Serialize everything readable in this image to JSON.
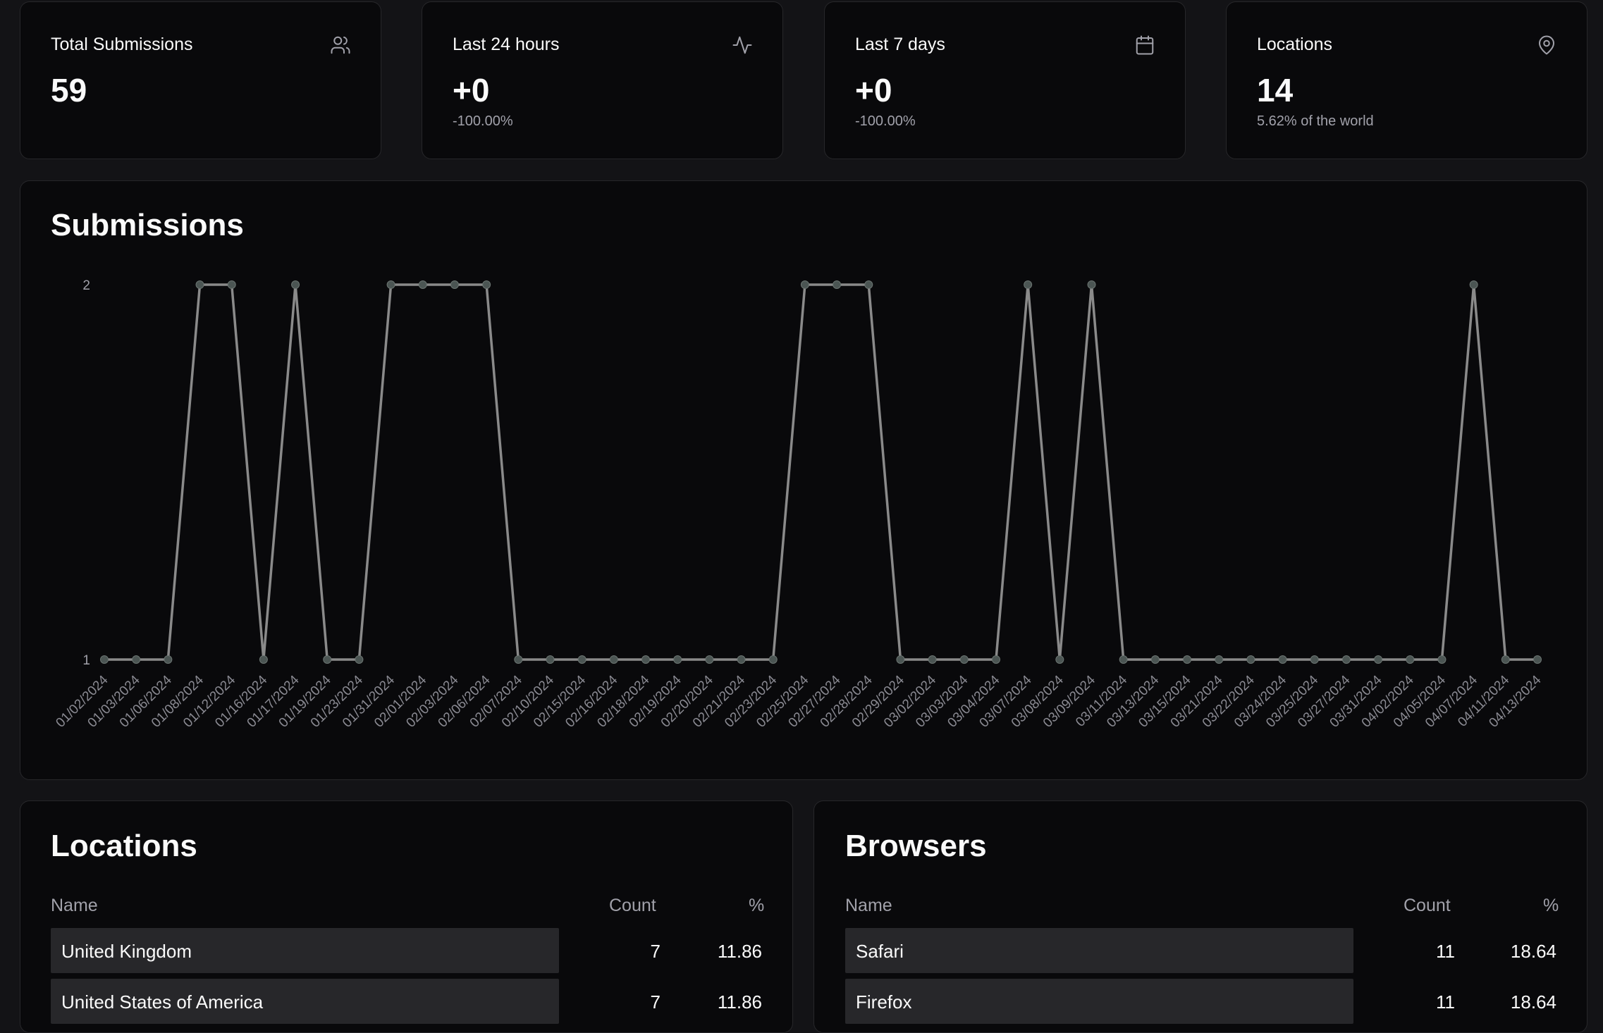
{
  "stats": [
    {
      "title": "Total Submissions",
      "value": "59",
      "sub": "",
      "icon": "users-icon"
    },
    {
      "title": "Last 24 hours",
      "value": "+0",
      "sub": "-100.00%",
      "icon": "activity-icon"
    },
    {
      "title": "Last 7 days",
      "value": "+0",
      "sub": "-100.00%",
      "icon": "calendar-icon"
    },
    {
      "title": "Locations",
      "value": "14",
      "sub": "5.62% of the world",
      "icon": "map-pin-icon"
    }
  ],
  "chart_section": {
    "title": "Submissions"
  },
  "chart_data": {
    "type": "line",
    "title": "Submissions",
    "ylim": [
      1,
      2
    ],
    "yticks": [
      "1",
      "2"
    ],
    "grid": false,
    "line_color": "#8a8a8a",
    "point_color": "#4b5553",
    "x": [
      "01/02/2024",
      "01/03/2024",
      "01/06/2024",
      "01/08/2024",
      "01/12/2024",
      "01/16/2024",
      "01/17/2024",
      "01/19/2024",
      "01/23/2024",
      "01/31/2024",
      "02/01/2024",
      "02/03/2024",
      "02/06/2024",
      "02/07/2024",
      "02/10/2024",
      "02/15/2024",
      "02/16/2024",
      "02/18/2024",
      "02/19/2024",
      "02/20/2024",
      "02/21/2024",
      "02/23/2024",
      "02/25/2024",
      "02/27/2024",
      "02/28/2024",
      "02/29/2024",
      "03/02/2024",
      "03/03/2024",
      "03/04/2024",
      "03/07/2024",
      "03/08/2024",
      "03/09/2024",
      "03/11/2024",
      "03/13/2024",
      "03/15/2024",
      "03/21/2024",
      "03/22/2024",
      "03/24/2024",
      "03/25/2024",
      "03/27/2024",
      "03/31/2024",
      "04/02/2024",
      "04/05/2024",
      "04/07/2024",
      "04/11/2024",
      "04/13/2024"
    ],
    "values": [
      1,
      1,
      1,
      2,
      2,
      1,
      2,
      1,
      1,
      2,
      2,
      2,
      2,
      1,
      1,
      1,
      1,
      1,
      1,
      1,
      1,
      1,
      2,
      2,
      2,
      1,
      1,
      1,
      1,
      2,
      1,
      2,
      1,
      1,
      1,
      1,
      1,
      1,
      1,
      1,
      1,
      1,
      1,
      2,
      1,
      1
    ]
  },
  "locations": {
    "title": "Locations",
    "headers": {
      "name": "Name",
      "count": "Count",
      "pct": "%"
    },
    "rows": [
      {
        "name": "United Kingdom",
        "count": "7",
        "pct": "11.86",
        "share": 1.0
      },
      {
        "name": "United States of America",
        "count": "7",
        "pct": "11.86",
        "share": 1.0
      }
    ]
  },
  "browsers": {
    "title": "Browsers",
    "headers": {
      "name": "Name",
      "count": "Count",
      "pct": "%"
    },
    "rows": [
      {
        "name": "Safari",
        "count": "11",
        "pct": "18.64",
        "share": 1.0
      },
      {
        "name": "Firefox",
        "count": "11",
        "pct": "18.64",
        "share": 1.0
      }
    ]
  }
}
